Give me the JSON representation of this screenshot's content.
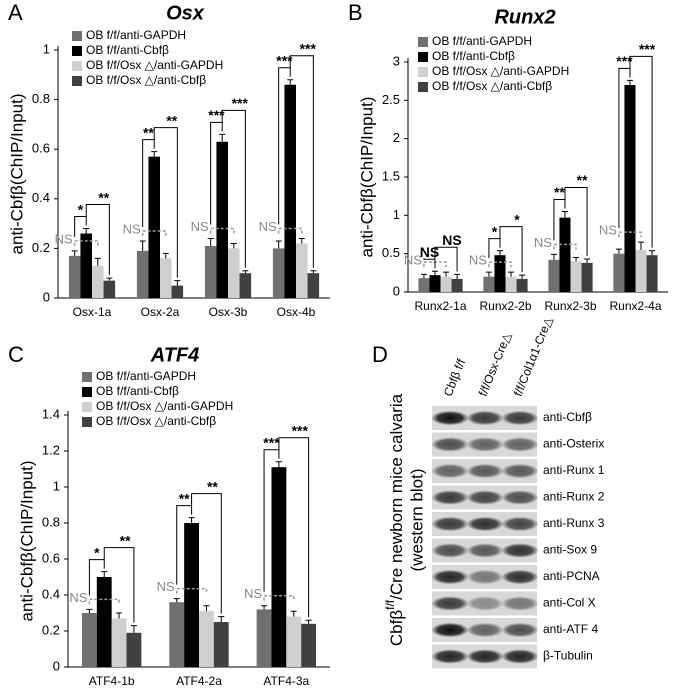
{
  "panel_labels": [
    "A",
    "B",
    "C",
    "D"
  ],
  "chart_data": [
    {
      "type": "bar",
      "title": "Osx",
      "y_label": "anti-Cbfβ(ChIP/Input)",
      "categories": [
        "Osx-1a",
        "Osx-2a",
        "Osx-3b",
        "Osx-4b"
      ],
      "series": [
        {
          "name": "OB f/f/anti-GAPDH",
          "color": "#707070",
          "values": [
            0.17,
            0.19,
            0.21,
            0.2
          ],
          "errors": [
            0.02,
            0.04,
            0.03,
            0.03
          ]
        },
        {
          "name": "OB f/f/anti-Cbfβ",
          "color": "#000000",
          "values": [
            0.26,
            0.57,
            0.63,
            0.86
          ],
          "errors": [
            0.02,
            0.02,
            0.03,
            0.02
          ]
        },
        {
          "name": "OB f/f/Osx △/anti-GAPDH",
          "color": "#cfcfcf",
          "values": [
            0.13,
            0.16,
            0.2,
            0.22
          ],
          "errors": [
            0.03,
            0.02,
            0.02,
            0.02
          ]
        },
        {
          "name": "OB f/f/Osx △/anti-Cbfβ",
          "color": "#404040",
          "values": [
            0.07,
            0.05,
            0.1,
            0.1
          ],
          "errors": [
            0.01,
            0.02,
            0.01,
            0.01
          ]
        }
      ],
      "significance": [
        {
          "ns": "NS",
          "left": "*",
          "right": "**"
        },
        {
          "ns": "NS",
          "left": "**",
          "right": "**"
        },
        {
          "ns": "NS",
          "left": "***",
          "right": "***"
        },
        {
          "ns": "NS",
          "left": "***",
          "right": "***"
        }
      ],
      "ylim": [
        0,
        1
      ],
      "yticks": [
        0,
        0.2,
        0.4,
        0.6,
        0.8,
        1
      ]
    },
    {
      "type": "bar",
      "title": "Runx2",
      "y_label": "anti-Cbfβ(ChIP/Input)",
      "categories": [
        "Runx2-1a",
        "Runx2-2b",
        "Runx2-3b",
        "Runx2-4a"
      ],
      "series": [
        {
          "name": "OB f/f/anti-GAPDH",
          "color": "#707070",
          "values": [
            0.18,
            0.2,
            0.42,
            0.5
          ],
          "errors": [
            0.05,
            0.06,
            0.07,
            0.06
          ]
        },
        {
          "name": "OB f/f/anti-Cbfβ",
          "color": "#000000",
          "values": [
            0.22,
            0.48,
            0.97,
            2.7
          ],
          "errors": [
            0.05,
            0.06,
            0.08,
            0.06
          ]
        },
        {
          "name": "OB f/f/Osx △/anti-GAPDH",
          "color": "#cfcfcf",
          "values": [
            0.2,
            0.2,
            0.4,
            0.55
          ],
          "errors": [
            0.06,
            0.06,
            0.05,
            0.1
          ]
        },
        {
          "name": "OB f/f/Osx △/anti-Cbfβ",
          "color": "#404040",
          "values": [
            0.17,
            0.17,
            0.38,
            0.48
          ],
          "errors": [
            0.06,
            0.05,
            0.05,
            0.06
          ]
        }
      ],
      "significance": [
        {
          "ns": "NS",
          "left": "NS",
          "right": "NS"
        },
        {
          "ns": "NS",
          "left": "*",
          "right": "*"
        },
        {
          "ns": "NS",
          "left": "**",
          "right": "**"
        },
        {
          "ns": "NS",
          "left": "***",
          "right": "***"
        }
      ],
      "ylim": [
        0,
        3
      ],
      "yticks": [
        0,
        0.5,
        1,
        1.5,
        2,
        2.5,
        3
      ]
    },
    {
      "type": "bar",
      "title": "ATF4",
      "y_label": "anti-Cbfβ(ChIP/Input)",
      "categories": [
        "ATF4-1b",
        "ATF4-2a",
        "ATF4-3a"
      ],
      "series": [
        {
          "name": "OB f/f/anti-GAPDH",
          "color": "#707070",
          "values": [
            0.3,
            0.36,
            0.32
          ],
          "errors": [
            0.02,
            0.02,
            0.02
          ]
        },
        {
          "name": "OB f/f/anti-Cbfβ",
          "color": "#000000",
          "values": [
            0.5,
            0.8,
            1.11
          ],
          "errors": [
            0.03,
            0.03,
            0.03
          ]
        },
        {
          "name": "OB f/f/Osx △/anti-GAPDH",
          "color": "#cfcfcf",
          "values": [
            0.27,
            0.31,
            0.28
          ],
          "errors": [
            0.03,
            0.03,
            0.03
          ]
        },
        {
          "name": "OB f/f/Osx △/anti-Cbfβ",
          "color": "#404040",
          "values": [
            0.19,
            0.25,
            0.24
          ],
          "errors": [
            0.04,
            0.03,
            0.02
          ]
        }
      ],
      "significance": [
        {
          "ns": "NS",
          "left": "*",
          "right": "**"
        },
        {
          "ns": "NS",
          "left": "**",
          "right": "**"
        },
        {
          "ns": "NS",
          "left": "***",
          "right": "***"
        }
      ],
      "ylim": [
        0,
        1.4
      ],
      "yticks": [
        0,
        0.2,
        0.4,
        0.6,
        0.8,
        1,
        1.2,
        1.4
      ]
    }
  ],
  "blot": {
    "y_label": {
      "main": "Cbfβ",
      "superscript": "f/f",
      "rest": "/Cre newborn mice calvaria",
      "note": "(western blot)"
    },
    "lanes": [
      "Cbfβ f/f",
      "f/f/Osx-Cre△",
      "f/f/Col1α1-Cre△"
    ],
    "rows": [
      "anti-Cbfβ",
      "anti-Osterix",
      "anti-Runx 1",
      "anti-Runx 2",
      "anti-Runx 3",
      "anti-Sox 9",
      "anti-PCNA",
      "anti-Col X",
      "anti-ATF 4",
      "β-Tubulin"
    ]
  }
}
